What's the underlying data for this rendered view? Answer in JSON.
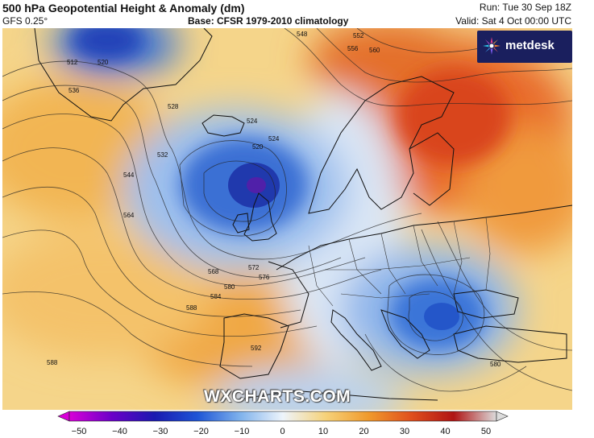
{
  "header": {
    "title": "500 hPa Geopotential Height & Anomaly (dm)",
    "model": "GFS 0.25°",
    "base": "Base: CFSR 1979-2010 climatology",
    "run": "Run: Tue 30 Sep 18Z",
    "valid": "Valid: Sat 4 Oct 00:00 UTC"
  },
  "logo": {
    "text": "metdesk"
  },
  "watermark": "WXCHARTS.COM",
  "contour_labels": [
    "512",
    "520",
    "528",
    "536",
    "544",
    "548",
    "552",
    "556",
    "560",
    "564",
    "568",
    "572",
    "576",
    "580",
    "584",
    "588",
    "592",
    "520",
    "524",
    "528",
    "532"
  ],
  "colorbar": {
    "ticks": [
      "−50",
      "−40",
      "−30",
      "−20",
      "−10",
      "0",
      "10",
      "20",
      "30",
      "40",
      "50"
    ],
    "colors": [
      "#d800d8",
      "#6a00c8",
      "#1a1ab0",
      "#1e55d6",
      "#7fb2ec",
      "#eef4fb",
      "#f6d27a",
      "#f09a2c",
      "#e0501e",
      "#b01414",
      "#dcdcdc"
    ]
  },
  "anomalies": [
    {
      "name": "iceland-uk-low",
      "sign": "negative"
    },
    {
      "name": "balkan-low",
      "sign": "negative"
    },
    {
      "name": "scandinavia-russia-high",
      "sign": "positive"
    },
    {
      "name": "atlantic-ridge",
      "sign": "positive"
    }
  ]
}
